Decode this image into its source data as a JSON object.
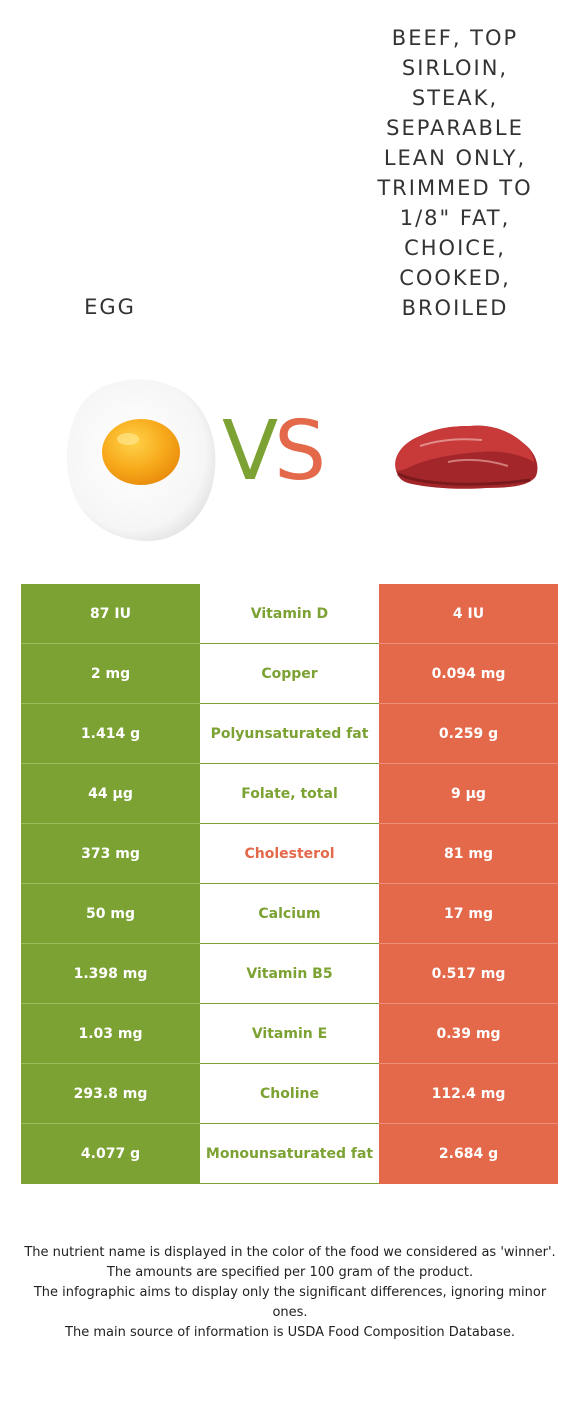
{
  "foods": {
    "left_name": "EGG",
    "right_name": "BEEF, TOP SIRLOIN, STEAK, SEPARABLE LEAN ONLY, TRIMMED TO 1/8\" FAT, CHOICE, COOKED, BROILED",
    "left_color": "#7ba232",
    "right_color": "#e4694a"
  },
  "vs": {
    "v": "V",
    "s": "S"
  },
  "rows": [
    {
      "left": "87 IU",
      "nutrient": "Vitamin D",
      "right": "4 IU",
      "winner": "left"
    },
    {
      "left": "2 mg",
      "nutrient": "Copper",
      "right": "0.094 mg",
      "winner": "left"
    },
    {
      "left": "1.414 g",
      "nutrient": "Polyunsaturated fat",
      "right": "0.259 g",
      "winner": "left"
    },
    {
      "left": "44 µg",
      "nutrient": "Folate, total",
      "right": "9 µg",
      "winner": "left"
    },
    {
      "left": "373 mg",
      "nutrient": "Cholesterol",
      "right": "81 mg",
      "winner": "right"
    },
    {
      "left": "50 mg",
      "nutrient": "Calcium",
      "right": "17 mg",
      "winner": "left"
    },
    {
      "left": "1.398 mg",
      "nutrient": "Vitamin B5",
      "right": "0.517 mg",
      "winner": "left"
    },
    {
      "left": "1.03 mg",
      "nutrient": "Vitamin E",
      "right": "0.39 mg",
      "winner": "left"
    },
    {
      "left": "293.8 mg",
      "nutrient": "Choline",
      "right": "112.4 mg",
      "winner": "left"
    },
    {
      "left": "4.077 g",
      "nutrient": "Monounsaturated fat",
      "right": "2.684 g",
      "winner": "left"
    }
  ],
  "footer": {
    "line1": "The nutrient name is displayed in the color of the food we considered as 'winner'.",
    "line2": "The amounts are specified per 100 gram of the product.",
    "line3": "The infographic aims to display only the significant differences, ignoring minor ones.",
    "line4": "The main source of information is USDA Food Composition Database."
  },
  "icons": {
    "left_image": "fried-egg-image",
    "right_image": "beef-steak-image"
  }
}
